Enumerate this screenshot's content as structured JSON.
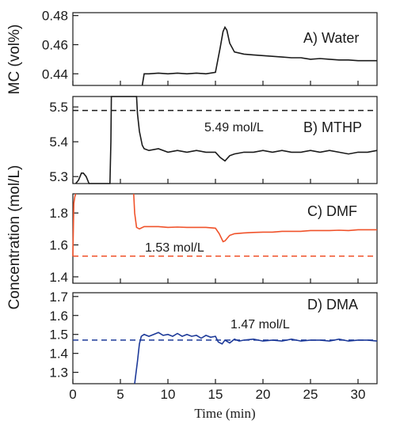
{
  "chart_data": {
    "type": "line",
    "xlabel": "Time (min)",
    "xlim": [
      0,
      32
    ],
    "x_ticks": [
      "0",
      "5",
      "10",
      "15",
      "20",
      "25",
      "30"
    ],
    "shared_ylabel": "Concentration (mol/L)",
    "panels": [
      {
        "label": "A) Water",
        "ylabel": "MC (vol%)",
        "ylim": [
          0.432,
          0.482
        ],
        "y_ticks": [
          "0.48",
          "0.46",
          "0.44"
        ],
        "color": "#1a1a1a",
        "series": [
          {
            "x": [
              7.3,
              7.5,
              8,
              9,
              10,
              11,
              12,
              13,
              14,
              15,
              15.5,
              15.8,
              16,
              16.2,
              16.5,
              17,
              18,
              19,
              20,
              21,
              22,
              23,
              24,
              25,
              26,
              27,
              28,
              29,
              30,
              31,
              32
            ],
            "values": [
              0.432,
              0.44,
              0.44,
              0.4405,
              0.44,
              0.4405,
              0.44,
              0.4405,
              0.44,
              0.441,
              0.458,
              0.469,
              0.472,
              0.47,
              0.461,
              0.455,
              0.4535,
              0.453,
              0.4525,
              0.452,
              0.4515,
              0.451,
              0.451,
              0.45,
              0.4505,
              0.45,
              0.4495,
              0.4495,
              0.449,
              0.449,
              0.449
            ]
          }
        ]
      },
      {
        "label": "B) MTHP",
        "ylim": [
          5.28,
          5.53
        ],
        "y_ticks": [
          "5.5",
          "5.4",
          "5.3"
        ],
        "color": "#1a1a1a",
        "reference": {
          "value": 5.49,
          "label": "5.49 mol/L"
        },
        "series": [
          {
            "x": [
              0.3,
              0.6,
              0.9,
              1.1,
              1.4,
              1.7,
              2,
              3,
              3.9,
              4.0,
              4.05,
              6.7,
              6.8,
              7,
              7.3,
              7.5,
              8,
              9,
              10,
              11,
              12,
              13,
              14,
              15,
              15.5,
              16,
              16.5,
              17,
              18,
              19,
              20,
              21,
              22,
              23,
              24,
              25,
              26,
              27,
              28,
              29,
              30,
              31,
              32
            ],
            "values": [
              5.28,
              5.29,
              5.31,
              5.31,
              5.3,
              5.28,
              5.28,
              5.28,
              5.28,
              5.4,
              5.53,
              5.53,
              5.48,
              5.43,
              5.39,
              5.38,
              5.375,
              5.38,
              5.37,
              5.375,
              5.37,
              5.375,
              5.37,
              5.37,
              5.355,
              5.345,
              5.36,
              5.365,
              5.37,
              5.37,
              5.375,
              5.37,
              5.375,
              5.37,
              5.37,
              5.375,
              5.37,
              5.375,
              5.37,
              5.365,
              5.37,
              5.37,
              5.375
            ]
          }
        ]
      },
      {
        "label": "C) DMF",
        "ylim": [
          1.36,
          1.92
        ],
        "y_ticks": [
          "1.8",
          "1.6",
          "1.4"
        ],
        "color": "#f0522a",
        "reference": {
          "value": 1.53,
          "label": "1.53 mol/L"
        },
        "series": [
          {
            "x": [
              0,
              0.05,
              0.1,
              0.2,
              0.3
            ],
            "values": [
              1.53,
              1.7,
              1.86,
              1.9,
              1.92
            ]
          },
          {
            "x": [
              6.4,
              6.5,
              6.7,
              7,
              7.5,
              8,
              9,
              10,
              11,
              12,
              13,
              14,
              15,
              15.4,
              15.8,
              16,
              16.5,
              17,
              18,
              19,
              20,
              21,
              22,
              23,
              24,
              25,
              26,
              27,
              28,
              29,
              30,
              31,
              32
            ],
            "values": [
              1.92,
              1.8,
              1.71,
              1.7,
              1.715,
              1.715,
              1.715,
              1.71,
              1.712,
              1.71,
              1.71,
              1.71,
              1.705,
              1.67,
              1.62,
              1.625,
              1.66,
              1.67,
              1.675,
              1.678,
              1.68,
              1.68,
              1.685,
              1.685,
              1.685,
              1.69,
              1.69,
              1.69,
              1.692,
              1.69,
              1.695,
              1.695,
              1.695
            ]
          }
        ]
      },
      {
        "label": "D) DMA",
        "ylim": [
          1.24,
          1.72
        ],
        "y_ticks": [
          "1.7",
          "1.6",
          "1.5",
          "1.4",
          "1.3"
        ],
        "color": "#1d3a99",
        "reference": {
          "value": 1.47,
          "label": "1.47 mol/L"
        },
        "series": [
          {
            "x": [
              6.5,
              6.8,
              7,
              7.2,
              7.5,
              8,
              8.5,
              9,
              9.5,
              10,
              10.5,
              11,
              11.5,
              12,
              12.5,
              13,
              13.5,
              14,
              14.5,
              15,
              15.3,
              15.7,
              16,
              16.5,
              17,
              17.5,
              18,
              19,
              20,
              21,
              22,
              23,
              24,
              25,
              26,
              27,
              28,
              29,
              30,
              31,
              32
            ],
            "values": [
              1.24,
              1.36,
              1.45,
              1.49,
              1.5,
              1.49,
              1.5,
              1.51,
              1.495,
              1.5,
              1.49,
              1.505,
              1.49,
              1.5,
              1.49,
              1.495,
              1.48,
              1.495,
              1.485,
              1.49,
              1.46,
              1.45,
              1.47,
              1.455,
              1.475,
              1.465,
              1.47,
              1.475,
              1.465,
              1.47,
              1.465,
              1.475,
              1.465,
              1.47,
              1.47,
              1.465,
              1.475,
              1.465,
              1.47,
              1.47,
              1.465
            ]
          }
        ]
      }
    ]
  }
}
